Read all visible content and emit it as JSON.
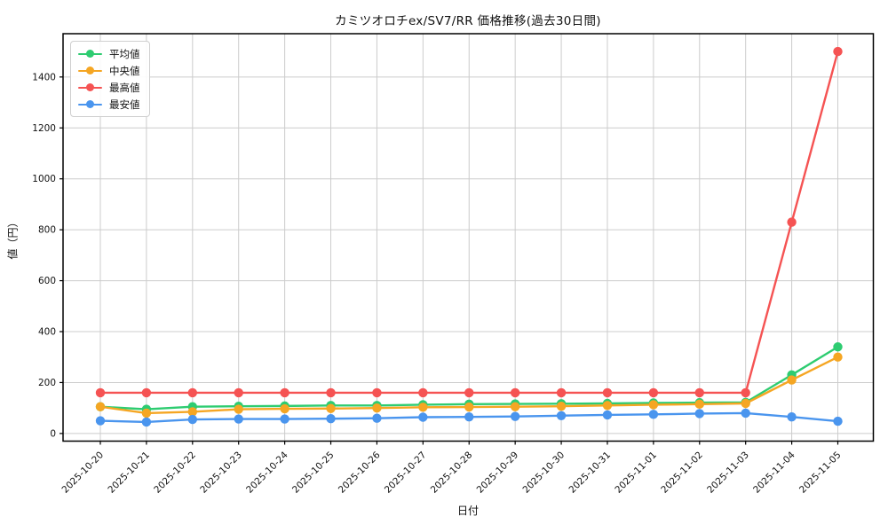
{
  "chart_data": {
    "type": "line",
    "title": "カミツオロチex/SV7/RR 価格推移(過去30日間)",
    "xlabel": "日付",
    "ylabel": "値（円）",
    "x": [
      "2025-10-20",
      "2025-10-21",
      "2025-10-22",
      "2025-10-23",
      "2025-10-24",
      "2025-10-25",
      "2025-10-26",
      "2025-10-27",
      "2025-10-28",
      "2025-10-29",
      "2025-10-30",
      "2025-10-31",
      "2025-11-01",
      "2025-11-02",
      "2025-11-03",
      "2025-11-04",
      "2025-11-05"
    ],
    "series": [
      {
        "key": "average",
        "name": "平均値",
        "color": "#2ecc71",
        "values": [
          105,
          95,
          105,
          107,
          108,
          110,
          110,
          113,
          115,
          116,
          117,
          118,
          120,
          121,
          122,
          230,
          340
        ]
      },
      {
        "key": "median",
        "name": "中央値",
        "color": "#f5a623",
        "values": [
          105,
          80,
          85,
          95,
          97,
          98,
          100,
          103,
          104,
          105,
          107,
          110,
          113,
          115,
          118,
          210,
          300
        ]
      },
      {
        "key": "max",
        "name": "最高値",
        "color": "#f55353",
        "values": [
          160,
          160,
          160,
          160,
          160,
          160,
          160,
          160,
          160,
          160,
          160,
          160,
          160,
          160,
          160,
          830,
          1500
        ]
      },
      {
        "key": "min",
        "name": "最安値",
        "color": "#4a95ee",
        "values": [
          50,
          45,
          55,
          57,
          57,
          58,
          60,
          64,
          65,
          67,
          70,
          73,
          75,
          78,
          80,
          65,
          48
        ]
      }
    ],
    "ylim": [
      -30,
      1570
    ],
    "yticks": [
      0,
      200,
      400,
      600,
      800,
      1000,
      1200,
      1400
    ],
    "grid": true,
    "legend_position": "upper-left",
    "colors": {
      "grid": "#cccccc",
      "spine": "#000000",
      "tick_text": "#111111",
      "background": "#ffffff"
    }
  }
}
